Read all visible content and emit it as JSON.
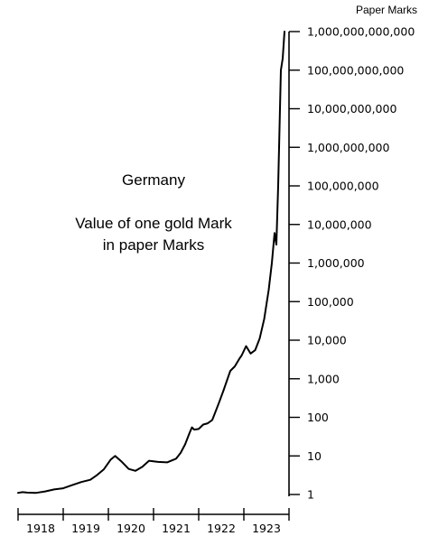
{
  "chart_data": {
    "type": "line",
    "title": "",
    "annotations": {
      "country": "Germany",
      "line1": "Value of one gold Mark",
      "line2": "in paper Marks"
    },
    "ylabel": "Paper Marks",
    "xlabel": "",
    "y_scale": "log",
    "ylim": [
      1,
      1000000000000
    ],
    "xlim": [
      1918.0,
      1924.0
    ],
    "x_ticks": [
      {
        "value": 1918,
        "label": "1918"
      },
      {
        "value": 1919,
        "label": "1919"
      },
      {
        "value": 1920,
        "label": "1920"
      },
      {
        "value": 1921,
        "label": "1921"
      },
      {
        "value": 1922,
        "label": "1922"
      },
      {
        "value": 1923,
        "label": "1923"
      }
    ],
    "y_ticks": [
      {
        "value": 1,
        "label": "1"
      },
      {
        "value": 10,
        "label": "10"
      },
      {
        "value": 100,
        "label": "100"
      },
      {
        "value": 1000,
        "label": "1,000"
      },
      {
        "value": 10000,
        "label": "10,000"
      },
      {
        "value": 100000,
        "label": "100,000"
      },
      {
        "value": 1000000,
        "label": "1,000,000"
      },
      {
        "value": 10000000,
        "label": "10,000,000"
      },
      {
        "value": 100000000,
        "label": "100,000,000"
      },
      {
        "value": 1000000000,
        "label": "1,000,000,000"
      },
      {
        "value": 10000000000,
        "label": "10,000,000,000"
      },
      {
        "value": 100000000000,
        "label": "100,000,000,000"
      },
      {
        "value": 1000000000000,
        "label": "1,000,000,000,000"
      }
    ],
    "grid": false,
    "legend": "none",
    "line_color": "#000000",
    "series": [
      {
        "x": [
          1918.0,
          1918.1,
          1918.2,
          1918.4,
          1918.6,
          1918.8,
          1919.0,
          1919.2,
          1919.4,
          1919.6,
          1919.75,
          1919.9,
          1920.05,
          1920.15,
          1920.3,
          1920.45,
          1920.6,
          1920.75,
          1920.9,
          1921.1,
          1921.3,
          1921.5,
          1921.6,
          1921.7,
          1921.8,
          1921.85,
          1921.9,
          1922.0,
          1922.1,
          1922.2,
          1922.3,
          1922.35,
          1922.45,
          1922.55,
          1922.7,
          1922.8,
          1922.9,
          1922.95,
          1923.05,
          1923.15,
          1923.25,
          1923.35,
          1923.45,
          1923.55,
          1923.62,
          1923.68,
          1923.72,
          1923.76,
          1923.82,
          1923.86,
          1923.9
        ],
        "values": [
          1.1,
          1.15,
          1.12,
          1.1,
          1.2,
          1.35,
          1.45,
          1.75,
          2.1,
          2.4,
          3.2,
          4.5,
          8,
          10,
          7,
          4.6,
          4.1,
          5.2,
          7.5,
          7,
          6.8,
          8.5,
          12,
          20,
          40,
          55,
          48,
          50,
          65,
          70,
          85,
          120,
          240,
          500,
          1600,
          2100,
          3300,
          4000,
          7000,
          4500,
          5500,
          11000,
          35000,
          200000,
          1000000,
          6000000,
          3000000,
          100000000,
          100000000000,
          200000000000,
          1000000000000
        ]
      }
    ]
  }
}
